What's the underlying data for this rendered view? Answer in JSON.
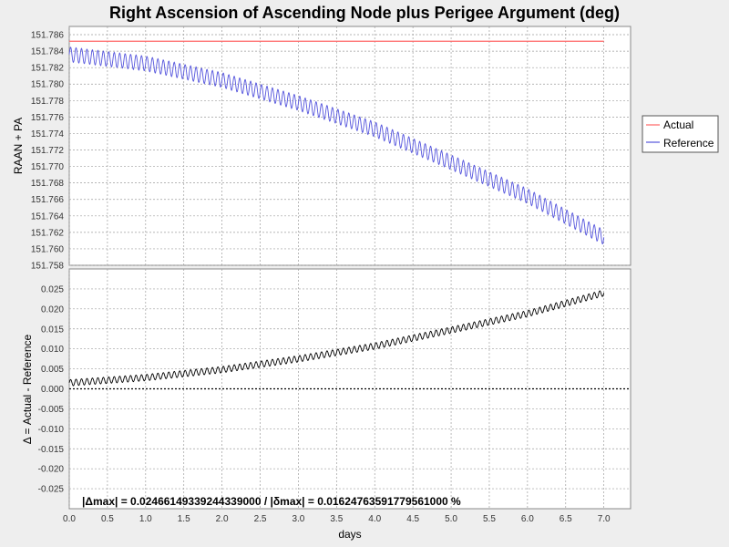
{
  "chart_data": [
    {
      "type": "line",
      "title": "Right Ascension of Ascending Node plus Perigee Argument (deg)",
      "ylabel": "RAAN + PA",
      "xlim": [
        0,
        7.35
      ],
      "ylim": [
        151.758,
        151.787
      ],
      "yticks": [
        "151.758",
        "151.760",
        "151.762",
        "151.764",
        "151.766",
        "151.768",
        "151.770",
        "151.772",
        "151.774",
        "151.776",
        "151.778",
        "151.780",
        "151.782",
        "151.784",
        "151.786"
      ],
      "grid": true,
      "legend_position": "right",
      "series": [
        {
          "name": "Actual",
          "color": "#ff6666",
          "x": [
            0,
            7.0
          ],
          "y": [
            151.7852,
            151.7852
          ]
        },
        {
          "name": "Reference",
          "color": "#5555dd",
          "x": [
            0,
            1,
            2,
            3,
            4,
            5,
            6,
            7.0
          ],
          "y": [
            151.7836,
            151.7825,
            151.7805,
            151.7777,
            151.7745,
            151.7705,
            151.7664,
            151.7614
          ],
          "oscillation_amplitude": 0.0009,
          "oscillations_per_day": 14
        }
      ]
    },
    {
      "type": "line",
      "ylabel": "Δ = Actual - Reference",
      "xlabel": "days",
      "xlim": [
        0,
        7.35
      ],
      "ylim": [
        -0.03,
        0.03
      ],
      "xticks": [
        "0.0",
        "0.5",
        "1.0",
        "1.5",
        "2.0",
        "2.5",
        "3.0",
        "3.5",
        "4.0",
        "4.5",
        "5.0",
        "5.5",
        "6.0",
        "6.5",
        "7.0"
      ],
      "yticks": [
        "-0.025",
        "-0.020",
        "-0.015",
        "-0.010",
        "-0.005",
        "0.000",
        "0.005",
        "0.010",
        "0.015",
        "0.020",
        "0.025"
      ],
      "grid": true,
      "series": [
        {
          "color": "#000000",
          "x": [
            0,
            1,
            2,
            3,
            4,
            5,
            6,
            7.0
          ],
          "y": [
            0.0015,
            0.0028,
            0.0048,
            0.0075,
            0.0107,
            0.0147,
            0.0188,
            0.024
          ],
          "oscillation_amplitude": 0.0008,
          "oscillations_per_day": 14
        },
        {
          "color": "#000000",
          "x": [
            0,
            7.35
          ],
          "y": [
            0,
            0
          ],
          "dashed": true
        }
      ],
      "annotation": "|Δmax| = 0.02466149339244339000        /      |δmax| = 0.01624763591779561000 %"
    }
  ]
}
